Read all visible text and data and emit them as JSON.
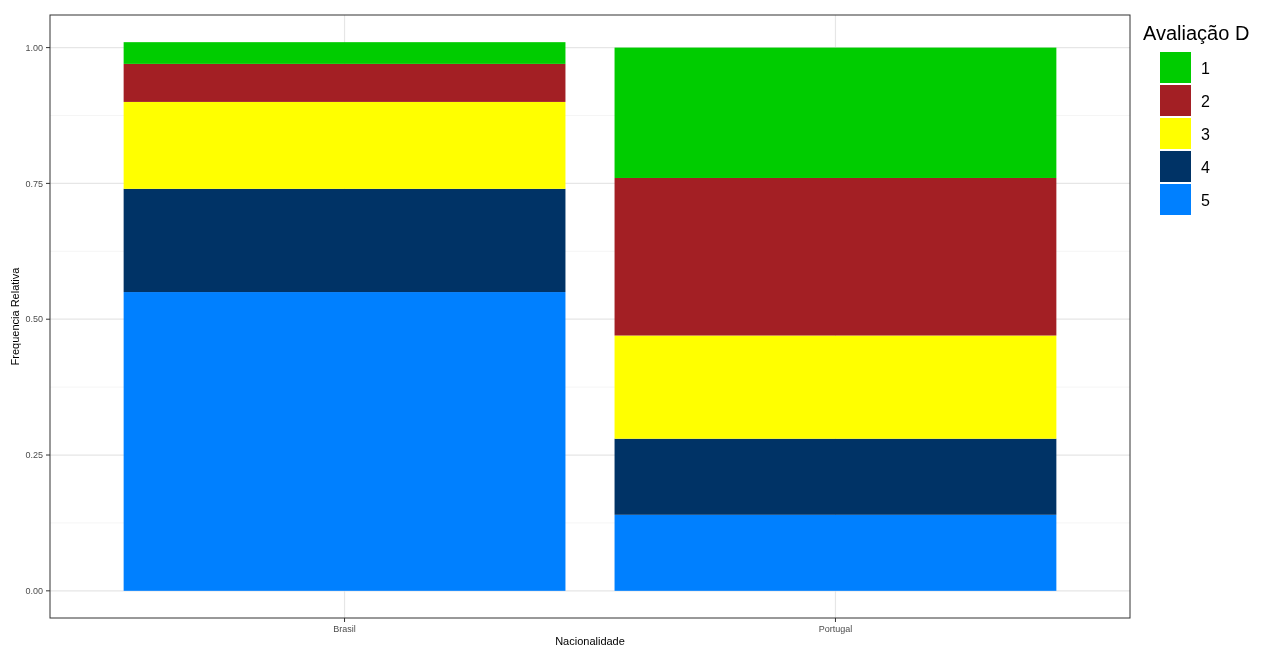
{
  "chart_data": {
    "type": "bar",
    "stacked": true,
    "xlabel": "Nacionalidade",
    "ylabel": "Frequencia Relativa",
    "legend_title": "Avaliação D",
    "legend": "right",
    "grid": true,
    "categories": [
      "Brasil",
      "Portugal"
    ],
    "ylim": [
      -0.05,
      1.06
    ],
    "yticks": [
      {
        "value": 0,
        "label": "0.00"
      },
      {
        "value": 0.25,
        "label": "0.25"
      },
      {
        "value": 0.5,
        "label": "0.50"
      },
      {
        "value": 0.75,
        "label": "0.75"
      },
      {
        "value": 1,
        "label": "1.00"
      }
    ],
    "series": [
      {
        "name": "5",
        "color": "#0080ff",
        "values": [
          0.55,
          0.14
        ]
      },
      {
        "name": "4",
        "color": "#003366",
        "values": [
          0.19,
          0.14
        ]
      },
      {
        "name": "3",
        "color": "#ffff00",
        "values": [
          0.16,
          0.19
        ]
      },
      {
        "name": "2",
        "color": "#a31f24",
        "values": [
          0.07,
          0.29
        ]
      },
      {
        "name": "1",
        "color": "#00cc00",
        "values": [
          0.04,
          0.24
        ]
      }
    ]
  }
}
